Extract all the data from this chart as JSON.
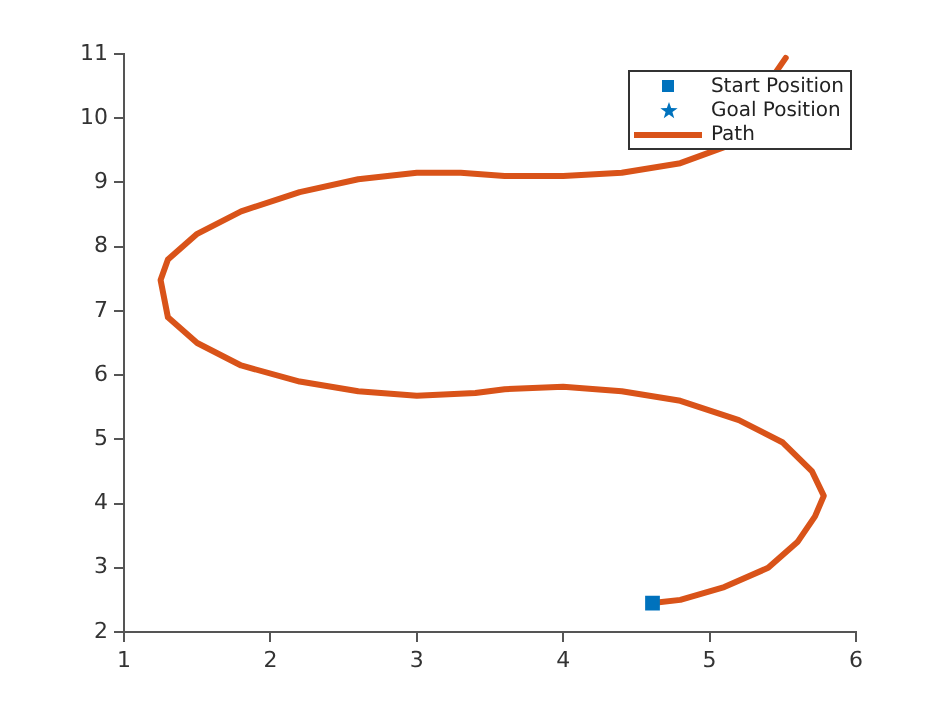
{
  "chart_data": {
    "type": "line",
    "xlim": [
      1,
      6
    ],
    "ylim": [
      2,
      11
    ],
    "xticks": [
      1,
      2,
      3,
      4,
      5,
      6
    ],
    "yticks": [
      2,
      3,
      4,
      5,
      6,
      7,
      8,
      9,
      10,
      11
    ],
    "grid": false,
    "legend": "top right",
    "series": [
      {
        "name": "Start Position",
        "type": "scatter",
        "marker": "square",
        "color": "#0072bd",
        "x": [
          4.61
        ],
        "values": [
          2.45
        ]
      },
      {
        "name": "Goal Position",
        "type": "scatter",
        "marker": "star",
        "color": "#0072bd",
        "x": [
          null
        ],
        "values": [
          null
        ]
      },
      {
        "name": "Path",
        "marker": "none",
        "color": "#d95319",
        "x": [
          4.61,
          4.8,
          5.1,
          5.4,
          5.6,
          5.72,
          5.78,
          5.7,
          5.5,
          5.2,
          4.8,
          4.4,
          4.0,
          3.6,
          3.4,
          3.0,
          2.6,
          2.2,
          1.8,
          1.5,
          1.3,
          1.25,
          1.3,
          1.5,
          1.8,
          2.2,
          2.6,
          3.0,
          3.3,
          3.6,
          4.0,
          4.4,
          4.8,
          5.1,
          5.3,
          5.4,
          5.52
        ],
        "values": [
          2.45,
          2.5,
          2.7,
          3.0,
          3.4,
          3.8,
          4.12,
          4.5,
          4.95,
          5.3,
          5.6,
          5.75,
          5.82,
          5.78,
          5.72,
          5.68,
          5.75,
          5.9,
          6.15,
          6.5,
          6.9,
          7.48,
          7.8,
          8.2,
          8.55,
          8.85,
          9.05,
          9.15,
          9.15,
          9.1,
          9.1,
          9.15,
          9.3,
          9.55,
          null,
          null,
          10.94
        ]
      }
    ]
  }
}
